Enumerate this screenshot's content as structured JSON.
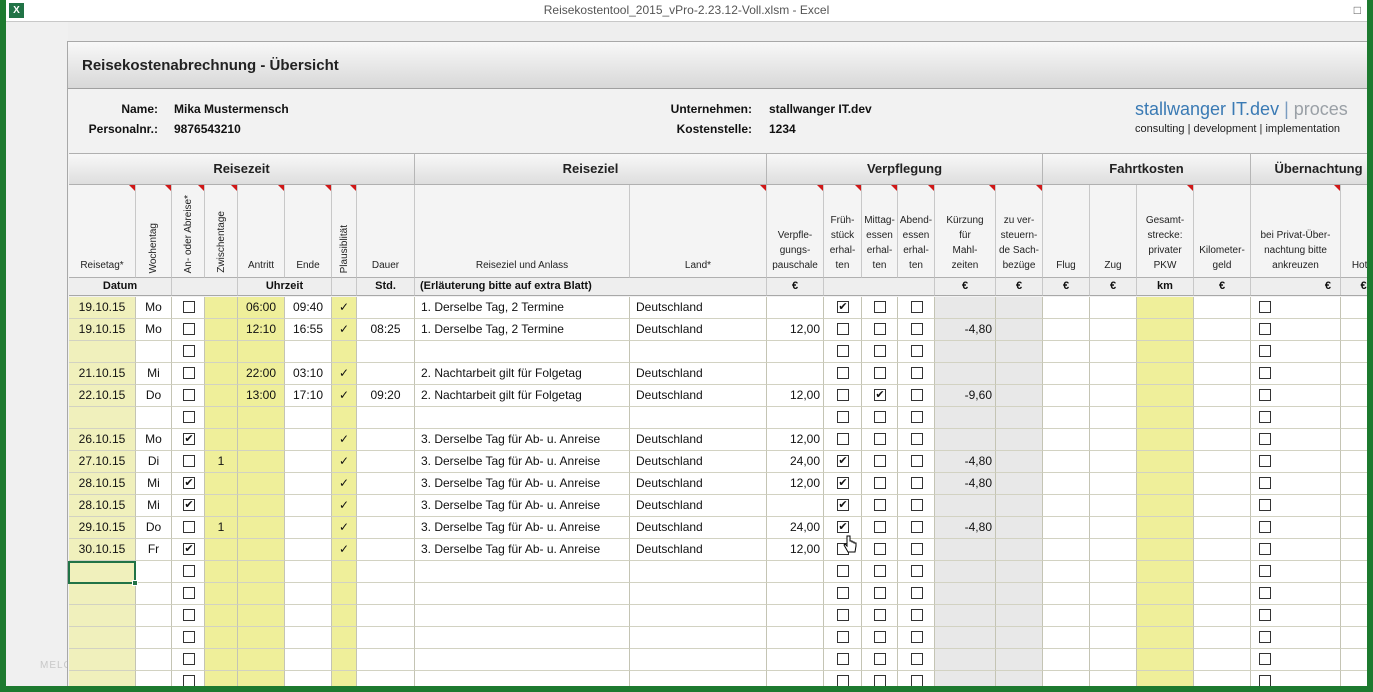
{
  "window": {
    "title": "Reisekostentool_2015_vPro-2.23.12-Voll.xlsm - Excel",
    "app_icon": "X",
    "control_glyph": "□"
  },
  "watermark": "MELOOWEB",
  "sheet": {
    "title": "Reisekostenabrechnung - Übersicht",
    "name_label": "Name:",
    "name_value": "Mika Mustermensch",
    "personal_label": "Personalnr.:",
    "personal_value": "9876543210",
    "company_label": "Unternehmen:",
    "company_value": "stallwanger IT.dev",
    "cost_label": "Kostenstelle:",
    "cost_value": "1234",
    "brand_prefix": "stallwanger IT.dev",
    "brand_sep": " | ",
    "brand_suffix": "proces",
    "brand_tagline": "consulting | development | implementation"
  },
  "groups": [
    "Reisezeit",
    "Reiseziel",
    "Verpflegung",
    "Fahrtkosten",
    "Übernachtung"
  ],
  "columns": [
    "Reisetag*",
    "Wochentag",
    "An- oder Abreise*",
    "Zwischentage",
    "Antritt",
    "Ende",
    "Plausiblität",
    "Dauer",
    "Reiseziel und Anlass",
    "Land*",
    "Verpfle-\ngungs-\npauschale",
    "Früh-\nstück\nerhal-\nten",
    "Mittag-\nessen\nerhal-\nten",
    "Abend-\nessen\nerhal-\nten",
    "Kürzung\nfür\nMahl-\nzeiten",
    "zu ver-\nsteuern-\nde Sach-\nbezüge",
    "Flug",
    "Zug",
    "Gesamt-\nstrecke:\nprivater\nPKW",
    "Kilometer-\ngeld",
    "bei Privat-Über-\nnachtung bitte\nankreuzen",
    "Hotel"
  ],
  "units": {
    "datum": "Datum",
    "uhrzeit": "Uhrzeit",
    "std": "Std.",
    "erlaeuterung": "(Erläuterung bitte auf extra Blatt)",
    "euro": "€",
    "km": "km"
  },
  "check_mark": "✓",
  "box_check": "✔",
  "rows": [
    {
      "date": "19.10.15",
      "day": "Mo",
      "arr": false,
      "zw": "",
      "start": "06:00",
      "end": "09:40",
      "plaus": "✓",
      "dur": "",
      "dest": "1. Derselbe Tag, 2 Termine",
      "land": "Deutschland",
      "vp": "",
      "fr": true,
      "mi": false,
      "ab": false,
      "kurz": "",
      "priv": false
    },
    {
      "date": "19.10.15",
      "day": "Mo",
      "arr": false,
      "zw": "",
      "start": "12:10",
      "end": "16:55",
      "plaus": "✓",
      "dur": "08:25",
      "dest": "1. Derselbe Tag, 2 Termine",
      "land": "Deutschland",
      "vp": "12,00",
      "fr": false,
      "mi": false,
      "ab": false,
      "kurz": "-4,80",
      "priv": false
    },
    {
      "date": "",
      "day": "",
      "arr": false,
      "zw": "",
      "start": "",
      "end": "",
      "plaus": "",
      "dur": "",
      "dest": "",
      "land": "",
      "vp": "",
      "fr": false,
      "mi": false,
      "ab": false,
      "kurz": "",
      "priv": false
    },
    {
      "date": "21.10.15",
      "day": "Mi",
      "arr": false,
      "zw": "",
      "start": "22:00",
      "end": "03:10",
      "plaus": "✓",
      "dur": "",
      "dest": "2. Nachtarbeit gilt für Folgetag",
      "land": "Deutschland",
      "vp": "",
      "fr": false,
      "mi": false,
      "ab": false,
      "kurz": "",
      "priv": false
    },
    {
      "date": "22.10.15",
      "day": "Do",
      "arr": false,
      "zw": "",
      "start": "13:00",
      "end": "17:10",
      "plaus": "✓",
      "dur": "09:20",
      "dest": "2. Nachtarbeit gilt für Folgetag",
      "land": "Deutschland",
      "vp": "12,00",
      "fr": false,
      "mi": true,
      "ab": false,
      "kurz": "-9,60",
      "priv": false
    },
    {
      "date": "",
      "day": "",
      "arr": false,
      "zw": "",
      "start": "",
      "end": "",
      "plaus": "",
      "dur": "",
      "dest": "",
      "land": "",
      "vp": "",
      "fr": false,
      "mi": false,
      "ab": false,
      "kurz": "",
      "priv": false
    },
    {
      "date": "26.10.15",
      "day": "Mo",
      "arr": true,
      "zw": "",
      "start": "",
      "end": "",
      "plaus": "✓",
      "dur": "",
      "dest": "3. Derselbe Tag für Ab- u. Anreise",
      "land": "Deutschland",
      "vp": "12,00",
      "fr": false,
      "mi": false,
      "ab": false,
      "kurz": "",
      "priv": false
    },
    {
      "date": "27.10.15",
      "day": "Di",
      "arr": false,
      "zw": "1",
      "start": "",
      "end": "",
      "plaus": "✓",
      "dur": "",
      "dest": "3. Derselbe Tag für Ab- u. Anreise",
      "land": "Deutschland",
      "vp": "24,00",
      "fr": true,
      "mi": false,
      "ab": false,
      "kurz": "-4,80",
      "priv": false
    },
    {
      "date": "28.10.15",
      "day": "Mi",
      "arr": true,
      "zw": "",
      "start": "",
      "end": "",
      "plaus": "✓",
      "dur": "",
      "dest": "3. Derselbe Tag für Ab- u. Anreise",
      "land": "Deutschland",
      "vp": "12,00",
      "fr": true,
      "mi": false,
      "ab": false,
      "kurz": "-4,80",
      "priv": false
    },
    {
      "date": "28.10.15",
      "day": "Mi",
      "arr": true,
      "zw": "",
      "start": "",
      "end": "",
      "plaus": "✓",
      "dur": "",
      "dest": "3. Derselbe Tag für Ab- u. Anreise",
      "land": "Deutschland",
      "vp": "",
      "fr": true,
      "mi": false,
      "ab": false,
      "kurz": "",
      "priv": false
    },
    {
      "date": "29.10.15",
      "day": "Do",
      "arr": false,
      "zw": "1",
      "start": "",
      "end": "",
      "plaus": "✓",
      "dur": "",
      "dest": "3. Derselbe Tag für Ab- u. Anreise",
      "land": "Deutschland",
      "vp": "24,00",
      "fr": true,
      "mi": false,
      "ab": false,
      "kurz": "-4,80",
      "priv": false
    },
    {
      "date": "30.10.15",
      "day": "Fr",
      "arr": true,
      "zw": "",
      "start": "",
      "end": "",
      "plaus": "✓",
      "dur": "",
      "dest": "3. Derselbe Tag für Ab- u. Anreise",
      "land": "Deutschland",
      "vp": "12,00",
      "fr": false,
      "mi": false,
      "ab": false,
      "kurz": "",
      "priv": false
    },
    {
      "date": "",
      "day": "",
      "arr": false,
      "zw": "",
      "start": "",
      "end": "",
      "plaus": "",
      "dur": "",
      "dest": "",
      "land": "",
      "vp": "",
      "fr": false,
      "mi": false,
      "ab": false,
      "kurz": "",
      "priv": false
    },
    {
      "date": "",
      "day": "",
      "arr": false,
      "zw": "",
      "start": "",
      "end": "",
      "plaus": "",
      "dur": "",
      "dest": "",
      "land": "",
      "vp": "",
      "fr": false,
      "mi": false,
      "ab": false,
      "kurz": "",
      "priv": false
    },
    {
      "date": "",
      "day": "",
      "arr": false,
      "zw": "",
      "start": "",
      "end": "",
      "plaus": "",
      "dur": "",
      "dest": "",
      "land": "",
      "vp": "",
      "fr": false,
      "mi": false,
      "ab": false,
      "kurz": "",
      "priv": false
    },
    {
      "date": "",
      "day": "",
      "arr": false,
      "zw": "",
      "start": "",
      "end": "",
      "plaus": "",
      "dur": "",
      "dest": "",
      "land": "",
      "vp": "",
      "fr": false,
      "mi": false,
      "ab": false,
      "kurz": "",
      "priv": false
    },
    {
      "date": "",
      "day": "",
      "arr": false,
      "zw": "",
      "start": "",
      "end": "",
      "plaus": "",
      "dur": "",
      "dest": "",
      "land": "",
      "vp": "",
      "fr": false,
      "mi": false,
      "ab": false,
      "kurz": "",
      "priv": false
    },
    {
      "date": "",
      "day": "",
      "arr": false,
      "zw": "",
      "start": "",
      "end": "",
      "plaus": "",
      "dur": "",
      "dest": "",
      "land": "",
      "vp": "",
      "fr": false,
      "mi": false,
      "ab": false,
      "kurz": "",
      "priv": false
    }
  ]
}
